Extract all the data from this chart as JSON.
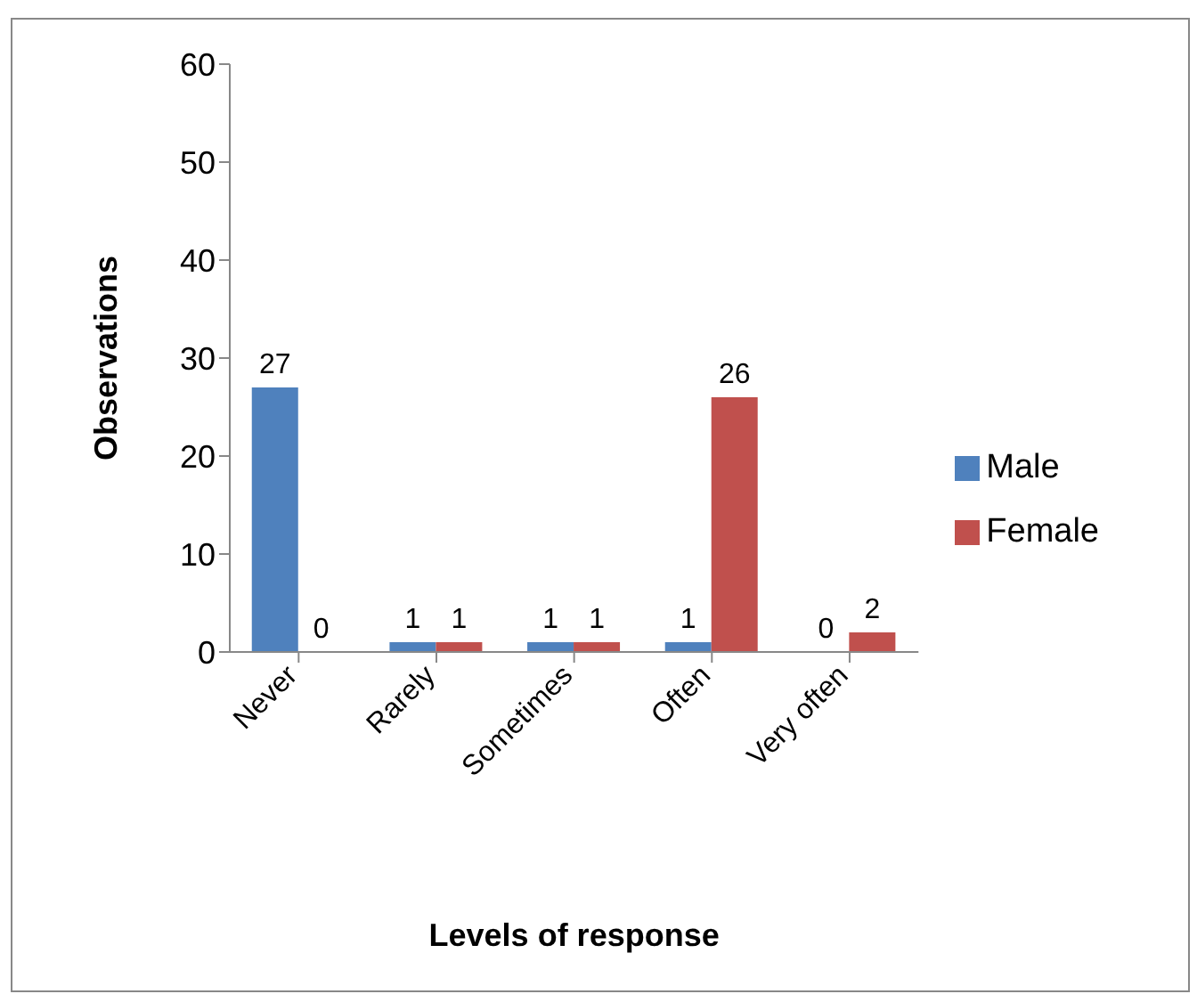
{
  "chart_data": {
    "type": "bar",
    "xlabel": "Levels of response",
    "ylabel": "Observations",
    "categories": [
      "Never",
      "Rarely",
      "Sometimes",
      "Often",
      "Very often"
    ],
    "series": [
      {
        "name": "Male",
        "color": "#4f81bd",
        "values": [
          27,
          1,
          1,
          1,
          0
        ]
      },
      {
        "name": "Female",
        "color": "#c0504d",
        "values": [
          0,
          1,
          1,
          26,
          2
        ]
      }
    ],
    "ylim": [
      0,
      60
    ],
    "yticks": [
      0,
      10,
      20,
      30,
      40,
      50,
      60
    ],
    "grid": false,
    "legend": "right",
    "data_labels": true
  }
}
